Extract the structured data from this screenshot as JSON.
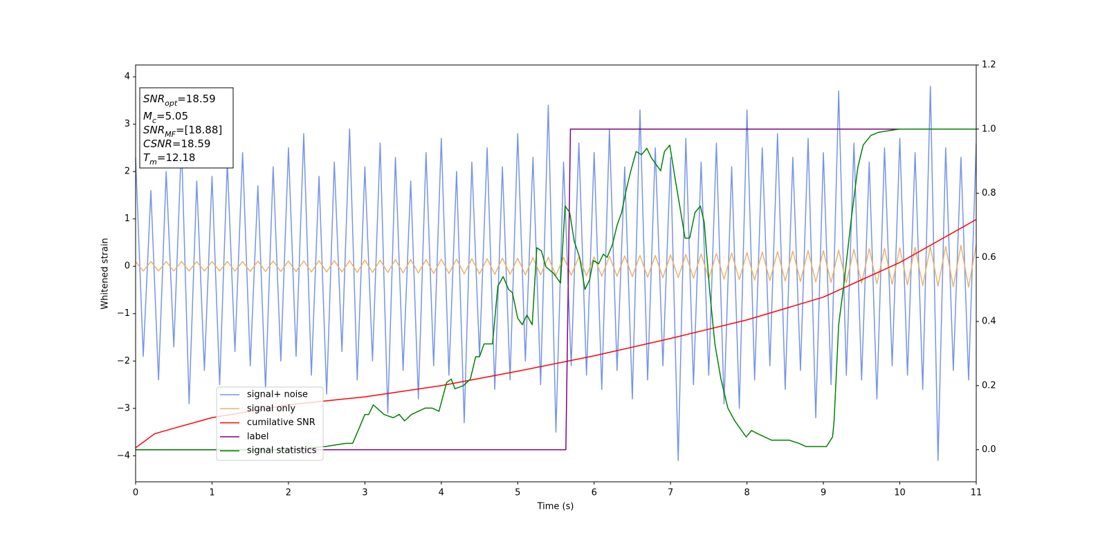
{
  "chart_data": {
    "type": "line",
    "xlabel": "Time (s)",
    "ylabel": "Whitened strain",
    "xlim": [
      0,
      11
    ],
    "xticks": [
      0,
      1,
      2,
      3,
      4,
      5,
      6,
      7,
      8,
      9,
      10,
      11
    ],
    "ylim": [
      -4.55,
      4.25
    ],
    "yticks": [
      {
        "value": -4,
        "label": "−4"
      },
      {
        "value": -3,
        "label": "−3"
      },
      {
        "value": -2,
        "label": "−2"
      },
      {
        "value": -1,
        "label": "−1"
      },
      0,
      1,
      2,
      3,
      4
    ],
    "y2lim": [
      -0.1,
      1.2
    ],
    "y2ticks": [
      {
        "value": 0,
        "label": "0.0"
      },
      0.2,
      0.4,
      0.6,
      0.8,
      {
        "value": 1,
        "label": "1.0"
      },
      1.2
    ],
    "annotations": [
      {
        "symbol": "SNR",
        "subscript": "opt",
        "text": "=18.59"
      },
      {
        "symbol": "M",
        "subscript": "c",
        "text": "=5.05"
      },
      {
        "symbol": "SNR",
        "subscript": "MF",
        "text": "=[18.88]"
      },
      {
        "symbol": "CSNR",
        "text": "=18.59"
      },
      {
        "symbol": "T",
        "subscript": "m",
        "text": "=12.18"
      }
    ],
    "series": [
      {
        "name": "signal+ noise",
        "color": "#7593e8",
        "x": [
          0,
          0.1,
          0.2,
          0.3,
          0.4,
          0.5,
          0.6,
          0.7,
          0.8,
          0.9,
          1,
          1.1,
          1.2,
          1.3,
          1.4,
          1.5,
          1.6,
          1.7,
          1.8,
          1.9,
          2,
          2.1,
          2.2,
          2.3,
          2.4,
          2.5,
          2.6,
          2.7,
          2.8,
          2.9,
          3,
          3.1,
          3.2,
          3.3,
          3.4,
          3.5,
          3.6,
          3.7,
          3.8,
          3.9,
          4,
          4.1,
          4.2,
          4.3,
          4.4,
          4.5,
          4.6,
          4.7,
          4.8,
          4.9,
          5,
          5.1,
          5.2,
          5.3,
          5.4,
          5.5,
          5.6,
          5.7,
          5.8,
          5.9,
          6,
          6.1,
          6.2,
          6.3,
          6.4,
          6.5,
          6.6,
          6.7,
          6.8,
          6.9,
          7,
          7.1,
          7.2,
          7.3,
          7.4,
          7.5,
          7.6,
          7.7,
          7.8,
          7.9,
          8,
          8.1,
          8.2,
          8.3,
          8.4,
          8.5,
          8.6,
          8.7,
          8.8,
          8.9,
          9,
          9.1,
          9.2,
          9.3,
          9.4,
          9.5,
          9.6,
          9.7,
          9.8,
          9.9,
          10,
          10.1,
          10.2,
          10.3,
          10.4,
          10.5,
          10.6,
          10.7,
          10.8,
          10.9,
          11
        ],
        "values": [
          2.3,
          -1.9,
          1.6,
          -2.4,
          2.0,
          -1.7,
          2.6,
          -2.9,
          1.8,
          -2.2,
          1.9,
          -2.5,
          2.2,
          -1.8,
          2.4,
          -2.1,
          1.7,
          -2.6,
          2.1,
          -2.0,
          2.5,
          -1.9,
          2.8,
          -2.3,
          1.9,
          -2.7,
          2.2,
          -1.8,
          2.9,
          -2.4,
          2.1,
          -2.0,
          2.6,
          -3.1,
          2.3,
          -2.2,
          1.8,
          -2.8,
          2.4,
          -2.1,
          2.7,
          -2.3,
          2.0,
          -3.3,
          2.2,
          -1.9,
          2.5,
          -2.6,
          2.1,
          -2.4,
          2.8,
          -2.0,
          2.3,
          -2.5,
          3.4,
          -3.5,
          2.2,
          -2.1,
          2.6,
          -2.3,
          2.4,
          -2.6,
          2.9,
          -2.2,
          2.1,
          -2.8,
          3.3,
          -2.4,
          2.5,
          -2.1,
          2.3,
          -4.1,
          2.7,
          -2.5,
          2.2,
          -2.3,
          2.6,
          -2.9,
          2.1,
          -3.0,
          3.3,
          -2.4,
          2.5,
          -2.1,
          2.8,
          -2.6,
          2.3,
          -2.2,
          2.7,
          -3.2,
          2.4,
          -2.5,
          3.7,
          -2.3,
          2.6,
          -2.4,
          2.2,
          -2.8,
          2.5,
          -2.1,
          2.7,
          -2.3,
          2.4,
          -2.6,
          3.8,
          -4.1,
          2.5,
          -2.2,
          2.3,
          -2.4,
          2.6
        ]
      },
      {
        "name": "signal only",
        "color": "#e9b36a",
        "x": [
          0,
          0.1,
          0.2,
          0.3,
          0.4,
          0.5,
          0.6,
          0.7,
          0.8,
          0.9,
          1,
          1.1,
          1.2,
          1.3,
          1.4,
          1.5,
          1.6,
          1.7,
          1.8,
          1.9,
          2,
          2.1,
          2.2,
          2.3,
          2.4,
          2.5,
          2.6,
          2.7,
          2.8,
          2.9,
          3,
          3.1,
          3.2,
          3.3,
          3.4,
          3.5,
          3.6,
          3.7,
          3.8,
          3.9,
          4,
          4.1,
          4.2,
          4.3,
          4.4,
          4.5,
          4.6,
          4.7,
          4.8,
          4.9,
          5,
          5.1,
          5.2,
          5.3,
          5.4,
          5.5,
          5.6,
          5.7,
          5.8,
          5.9,
          6,
          6.1,
          6.2,
          6.3,
          6.4,
          6.5,
          6.6,
          6.7,
          6.8,
          6.9,
          7,
          7.1,
          7.2,
          7.3,
          7.4,
          7.5,
          7.6,
          7.7,
          7.8,
          7.9,
          8,
          8.1,
          8.2,
          8.3,
          8.4,
          8.5,
          8.6,
          8.7,
          8.8,
          8.9,
          9,
          9.1,
          9.2,
          9.3,
          9.4,
          9.5,
          9.6,
          9.7,
          9.8,
          9.9,
          10,
          10.1,
          10.2,
          10.3,
          10.4,
          10.5,
          10.6,
          10.7,
          10.8,
          10.9,
          11
        ],
        "values": [
          0.1,
          -0.1,
          0.1,
          -0.1,
          0.1,
          -0.1,
          0.1,
          -0.1,
          0.1,
          -0.1,
          0.1,
          -0.1,
          0.1,
          -0.1,
          0.1,
          -0.11,
          0.11,
          -0.11,
          0.11,
          -0.11,
          0.11,
          -0.11,
          0.11,
          -0.12,
          0.12,
          -0.12,
          0.12,
          -0.12,
          0.12,
          -0.13,
          0.13,
          -0.13,
          0.13,
          -0.13,
          0.14,
          -0.14,
          0.14,
          -0.14,
          0.14,
          -0.15,
          0.15,
          -0.15,
          0.15,
          -0.16,
          0.16,
          -0.16,
          0.16,
          -0.17,
          0.17,
          -0.17,
          0.17,
          -0.18,
          0.18,
          -0.18,
          0.19,
          -0.19,
          0.19,
          -0.19,
          0.2,
          -0.2,
          0.2,
          -0.21,
          0.21,
          -0.21,
          0.22,
          -0.22,
          0.23,
          -0.23,
          0.23,
          -0.24,
          0.24,
          -0.24,
          0.25,
          -0.25,
          0.26,
          -0.26,
          0.27,
          -0.27,
          0.28,
          -0.28,
          0.29,
          -0.29,
          0.3,
          -0.3,
          0.31,
          -0.31,
          0.32,
          -0.32,
          0.33,
          -0.33,
          0.33,
          -0.34,
          0.34,
          -0.35,
          0.36,
          -0.36,
          0.37,
          -0.37,
          0.38,
          -0.38,
          0.39,
          -0.39,
          0.4,
          -0.41,
          0.41,
          -0.42,
          0.42,
          -0.43,
          0.44,
          -0.44,
          0.45
        ]
      },
      {
        "name": "cumilative SNR",
        "color": "#ff0000",
        "axis": "y2",
        "x": [
          0,
          0.25,
          0.5,
          1,
          2,
          3,
          4,
          5,
          6,
          7,
          8,
          9,
          10,
          11
        ],
        "values": [
          0.006,
          0.05,
          0.067,
          0.1,
          0.14,
          0.165,
          0.2,
          0.245,
          0.293,
          0.347,
          0.405,
          0.476,
          0.584,
          0.718
        ]
      },
      {
        "name": "label",
        "color": "#800080",
        "axis": "y2",
        "x": [
          0,
          5.63,
          5.69,
          11
        ],
        "values": [
          0,
          0,
          1,
          1
        ]
      },
      {
        "name": "signal statistics",
        "color": "#008000",
        "axis": "y2",
        "x": [
          0,
          2.03,
          2.48,
          2.75,
          2.84,
          2.93,
          3.0,
          3.05,
          3.11,
          3.25,
          3.37,
          3.45,
          3.52,
          3.61,
          3.7,
          3.79,
          3.88,
          3.97,
          4.07,
          4.13,
          4.18,
          4.29,
          4.38,
          4.45,
          4.5,
          4.56,
          4.67,
          4.74,
          4.81,
          4.88,
          4.93,
          5.0,
          5.06,
          5.12,
          5.19,
          5.25,
          5.31,
          5.37,
          5.47,
          5.56,
          5.62,
          5.68,
          5.74,
          5.81,
          5.88,
          5.94,
          5.99,
          6.06,
          6.12,
          6.17,
          6.24,
          6.3,
          6.36,
          6.42,
          6.48,
          6.55,
          6.62,
          6.69,
          6.75,
          6.81,
          6.87,
          6.92,
          6.99,
          7.05,
          7.12,
          7.19,
          7.25,
          7.32,
          7.39,
          7.44,
          7.51,
          7.58,
          7.66,
          7.75,
          7.84,
          7.93,
          7.99,
          8.06,
          8.14,
          8.23,
          8.32,
          8.41,
          8.55,
          8.68,
          8.77,
          8.91,
          9.04,
          9.12,
          9.14,
          9.2,
          9.27,
          9.36,
          9.45,
          9.52,
          9.62,
          9.72,
          9.99,
          11
        ],
        "values": [
          0,
          0,
          0.01,
          0.02,
          0.02,
          0.07,
          0.11,
          0.11,
          0.14,
          0.11,
          0.1,
          0.11,
          0.09,
          0.11,
          0.12,
          0.13,
          0.13,
          0.12,
          0.21,
          0.22,
          0.19,
          0.2,
          0.22,
          0.29,
          0.29,
          0.33,
          0.33,
          0.51,
          0.54,
          0.5,
          0.49,
          0.41,
          0.39,
          0.42,
          0.39,
          0.63,
          0.62,
          0.57,
          0.55,
          0.52,
          0.76,
          0.74,
          0.65,
          0.6,
          0.5,
          0.53,
          0.59,
          0.58,
          0.61,
          0.6,
          0.64,
          0.7,
          0.74,
          0.81,
          0.87,
          0.93,
          0.92,
          0.94,
          0.91,
          0.89,
          0.87,
          0.93,
          0.95,
          0.86,
          0.76,
          0.66,
          0.66,
          0.74,
          0.76,
          0.71,
          0.5,
          0.33,
          0.22,
          0.13,
          0.09,
          0.06,
          0.04,
          0.06,
          0.05,
          0.04,
          0.03,
          0.03,
          0.03,
          0.02,
          0.01,
          0.01,
          0.01,
          0.04,
          0.09,
          0.39,
          0.52,
          0.71,
          0.88,
          0.95,
          0.98,
          0.99,
          1,
          1
        ]
      }
    ]
  }
}
